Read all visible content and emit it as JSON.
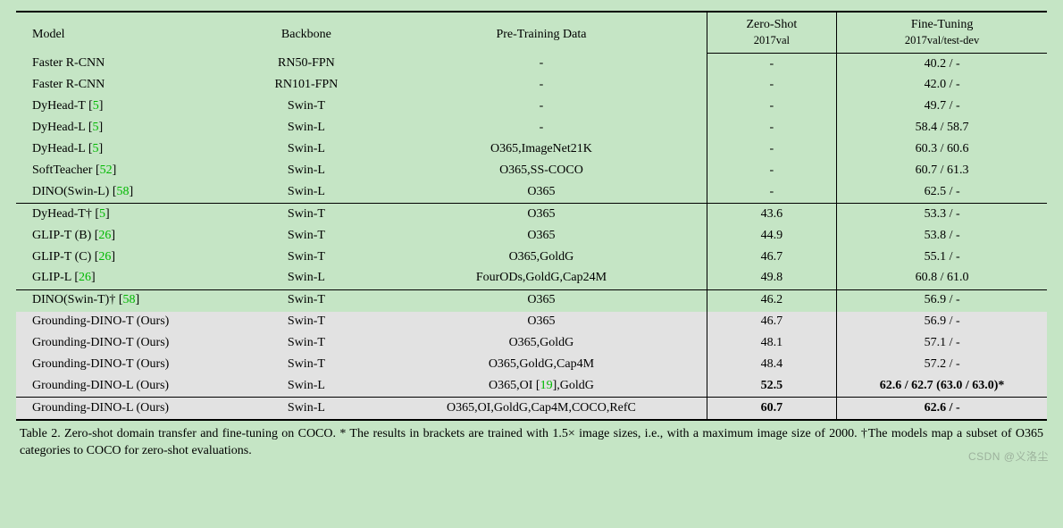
{
  "header": {
    "model": "Model",
    "backbone": "Backbone",
    "pretrain": "Pre-Training Data",
    "zeroshot": "Zero-Shot",
    "zeroshot_sub": "2017val",
    "finetune": "Fine-Tuning",
    "finetune_sub": "2017val/test-dev"
  },
  "g1": {
    "r0": {
      "m": "Faster R-CNN",
      "b": "RN50-FPN",
      "p": "-",
      "z": "-",
      "f": "40.2 / -"
    },
    "r1": {
      "m": "Faster R-CNN",
      "b": "RN101-FPN",
      "p": "-",
      "z": "-",
      "f": "42.0 / -"
    },
    "r2": {
      "m": "DyHead-T",
      "c": "5",
      "b": "Swin-T",
      "p": "-",
      "z": "-",
      "f": "49.7 / -"
    },
    "r3": {
      "m": "DyHead-L",
      "c": "5",
      "b": "Swin-L",
      "p": "-",
      "z": "-",
      "f": "58.4 / 58.7"
    },
    "r4": {
      "m": "DyHead-L",
      "c": "5",
      "b": "Swin-L",
      "p": "O365,ImageNet21K",
      "z": "-",
      "f": "60.3 / 60.6"
    },
    "r5": {
      "m": "SoftTeacher",
      "c": "52",
      "b": "Swin-L",
      "p": "O365,SS-COCO",
      "z": "-",
      "f": "60.7 / 61.3"
    },
    "r6": {
      "m": "DINO(Swin-L)",
      "c": "58",
      "b": "Swin-L",
      "p": "O365",
      "z": "-",
      "f": "62.5 / -"
    }
  },
  "g2": {
    "r0": {
      "m": "DyHead-T†",
      "c": "5",
      "b": "Swin-T",
      "p": "O365",
      "z": "43.6",
      "f": "53.3 / -"
    },
    "r1": {
      "m": "GLIP-T (B)",
      "c": "26",
      "b": "Swin-T",
      "p": "O365",
      "z": "44.9",
      "f": "53.8 / -"
    },
    "r2": {
      "m": "GLIP-T (C)",
      "c": "26",
      "b": "Swin-T",
      "p": "O365,GoldG",
      "z": "46.7",
      "f": "55.1 / -"
    },
    "r3": {
      "m": "GLIP-L",
      "c": "26",
      "b": "Swin-L",
      "p": "FourODs,GoldG,Cap24M",
      "z": "49.8",
      "f": "60.8 / 61.0"
    }
  },
  "g3": {
    "r0": {
      "m": "DINO(Swin-T)†",
      "c": "58",
      "b": "Swin-T",
      "p": "O365",
      "z": "46.2",
      "f": "56.9 / -"
    },
    "r1": {
      "m": "Grounding-DINO-T (Ours)",
      "b": "Swin-T",
      "p": "O365",
      "z": "46.7",
      "f": "56.9 / -"
    },
    "r2": {
      "m": "Grounding-DINO-T (Ours)",
      "b": "Swin-T",
      "p": "O365,GoldG",
      "z": "48.1",
      "f": "57.1 / -"
    },
    "r3": {
      "m": "Grounding-DINO-T (Ours)",
      "b": "Swin-T",
      "p": "O365,GoldG,Cap4M",
      "z": "48.4",
      "f": "57.2 / -"
    },
    "r4": {
      "m": "Grounding-DINO-L (Ours)",
      "b": "Swin-L",
      "p_pre": "O365,OI [",
      "p_cite": "19",
      "p_post": "],GoldG",
      "z": "52.5",
      "f": "62.6 / 62.7 (63.0 / 63.0)*"
    }
  },
  "g4": {
    "r0": {
      "m": "Grounding-DINO-L (Ours)",
      "b": "Swin-L",
      "p": "O365,OI,GoldG,Cap4M,COCO,RefC",
      "z": "60.7",
      "f": "62.6 / -"
    }
  },
  "caption": {
    "label": "Table 2.  Zero-shot domain transfer and fine-tuning on COCO. * The results in brackets are trained with 1.5× image sizes, i.e., with a maximum image size of 2000. †The models map a subset of O365 categories to COCO for zero-shot evaluations."
  },
  "watermark": "CSDN @义洛尘",
  "style": {
    "bg": "#c5e5c5",
    "highlight_bg": "#e2e2e2",
    "cite_color": "#00b800",
    "border_color": "#000000",
    "font_family": "Times New Roman"
  }
}
